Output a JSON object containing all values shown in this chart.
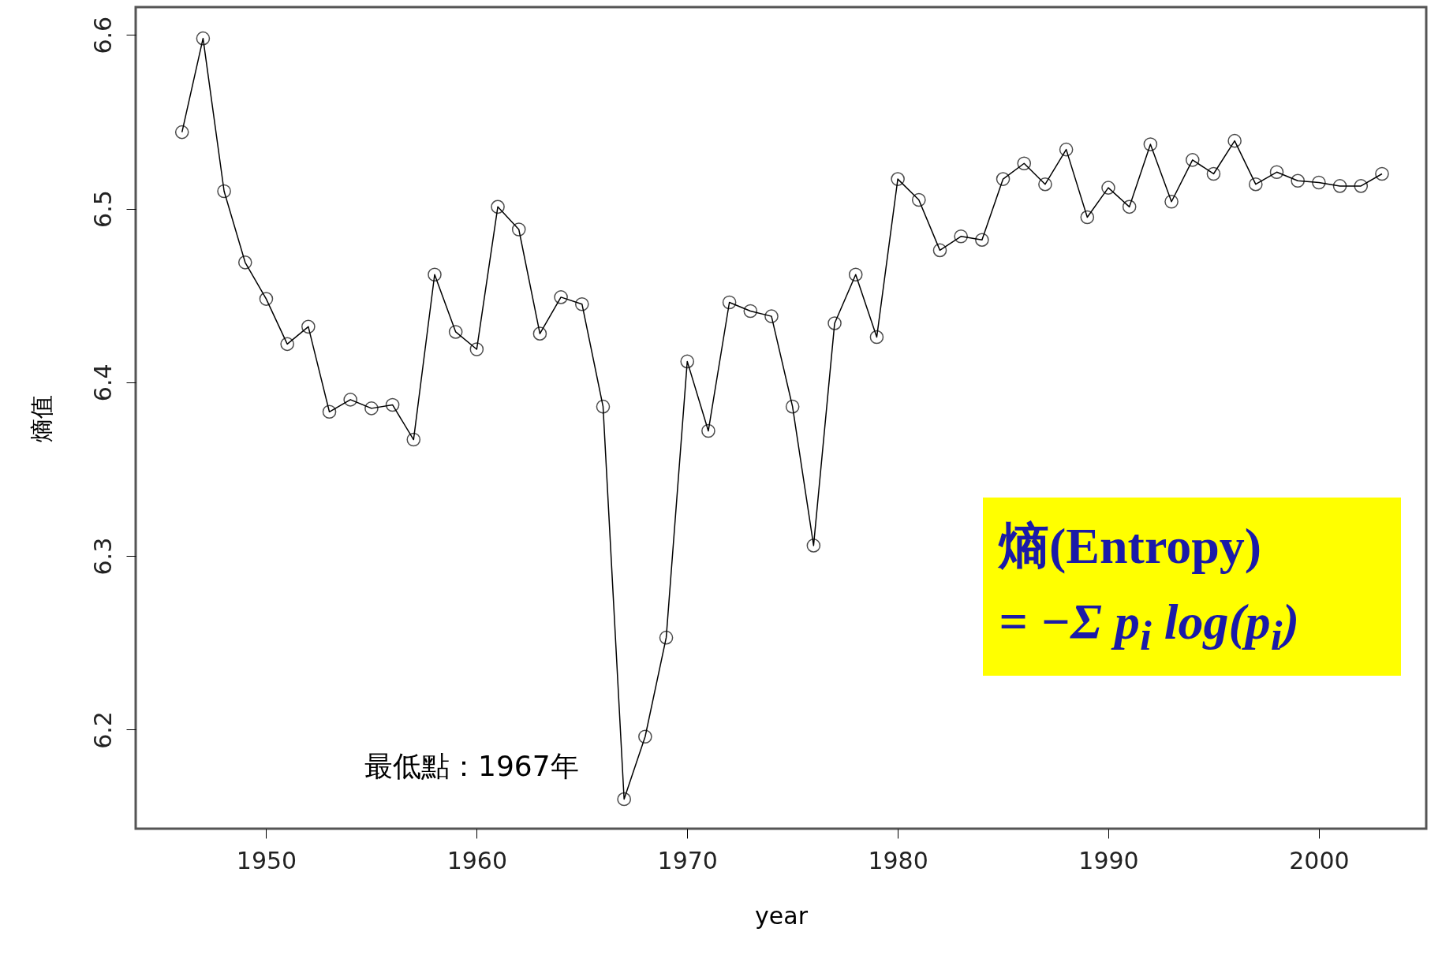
{
  "chart_data": {
    "type": "line",
    "xlabel": "year",
    "ylabel": "熵值",
    "marker": "circle",
    "line_style": "solid",
    "grid": false,
    "x": [
      1946,
      1947,
      1948,
      1949,
      1950,
      1951,
      1952,
      1953,
      1954,
      1955,
      1956,
      1957,
      1958,
      1959,
      1960,
      1961,
      1962,
      1963,
      1964,
      1965,
      1966,
      1967,
      1968,
      1969,
      1970,
      1971,
      1972,
      1973,
      1974,
      1975,
      1976,
      1977,
      1978,
      1979,
      1980,
      1981,
      1982,
      1983,
      1984,
      1985,
      1986,
      1987,
      1988,
      1989,
      1990,
      1991,
      1992,
      1993,
      1994,
      1995,
      1996,
      1997,
      1998,
      1999,
      2000,
      2001,
      2002,
      2003
    ],
    "series": [
      {
        "color": "#000000",
        "values": [
          6.544,
          6.598,
          6.51,
          6.469,
          6.448,
          6.422,
          6.432,
          6.383,
          6.39,
          6.385,
          6.387,
          6.367,
          6.462,
          6.429,
          6.419,
          6.501,
          6.488,
          6.428,
          6.449,
          6.445,
          6.386,
          6.16,
          6.196,
          6.253,
          6.412,
          6.372,
          6.446,
          6.441,
          6.438,
          6.386,
          6.306,
          6.434,
          6.462,
          6.426,
          6.517,
          6.505,
          6.476,
          6.484,
          6.482,
          6.517,
          6.526,
          6.514,
          6.534,
          6.495,
          6.512,
          6.501,
          6.537,
          6.504,
          6.528,
          6.52,
          6.539,
          6.514,
          6.521,
          6.516,
          6.515,
          6.513,
          6.513,
          6.52
        ]
      }
    ],
    "xlim": [
      1943.8,
      2005.1
    ],
    "xticks": [
      1950,
      1960,
      1970,
      1980,
      1990,
      2000
    ],
    "ylim": [
      6.143,
      6.616
    ],
    "yticks": [
      6.2,
      6.3,
      6.4,
      6.5,
      6.6
    ],
    "annotations": [
      "最低點：1967年",
      "熵(Entropy)",
      "= −Σ p$_{i}$ log(p$_{i}$)"
    ]
  }
}
